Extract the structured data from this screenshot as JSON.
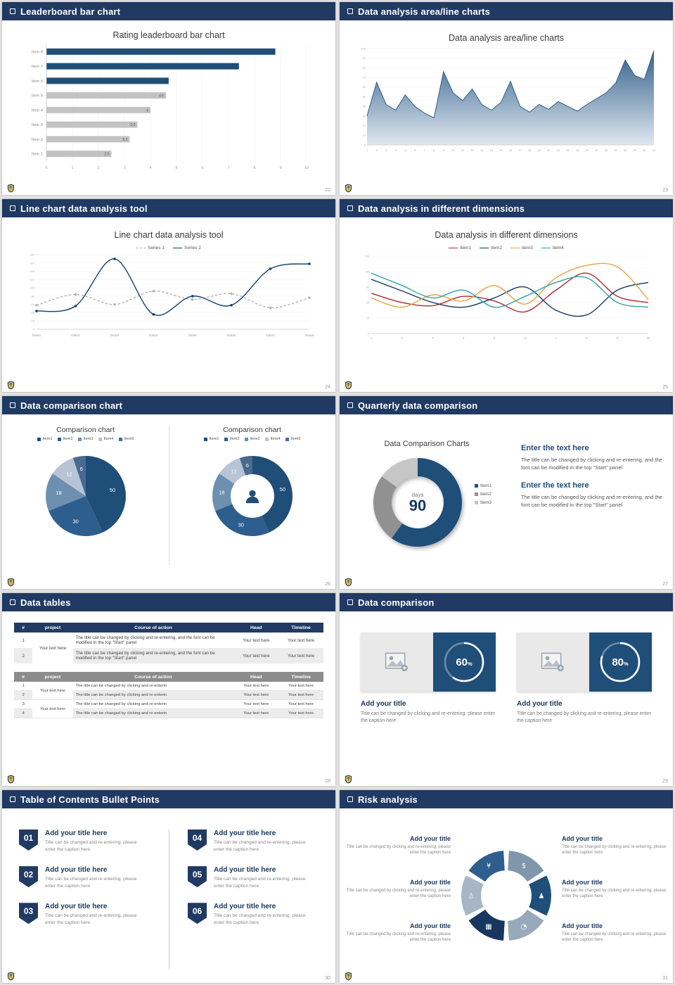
{
  "slides": {
    "leaderboard": {
      "header": "Leaderboard bar chart",
      "page": "22",
      "title": "Rating leaderboard bar chart",
      "chart": {
        "type": "bar",
        "xmax": 10,
        "x_ticks": [
          "0",
          "1",
          "2",
          "3",
          "4",
          "5",
          "6",
          "7",
          "8",
          "9",
          "10"
        ],
        "rows": [
          {
            "label": "Item 8",
            "value": 8.8,
            "color": "#1f4e79",
            "value_label": ""
          },
          {
            "label": "Item 7",
            "value": 7.4,
            "color": "#1f4e79",
            "value_label": ""
          },
          {
            "label": "Item 6",
            "value": 4.7,
            "color": "#1f4e79",
            "value_label": ""
          },
          {
            "label": "Item 5",
            "value": 4.6,
            "color": "#c3c3c3",
            "value_label": "4.6"
          },
          {
            "label": "Item 4",
            "value": 4,
            "color": "#c3c3c3",
            "value_label": "4"
          },
          {
            "label": "Item 3",
            "value": 3.5,
            "color": "#c3c3c3",
            "value_label": "3.5"
          },
          {
            "label": "Item 2",
            "value": 3.2,
            "color": "#c3c3c3",
            "value_label": "3.2"
          },
          {
            "label": "Item 1",
            "value": 2.5,
            "color": "#c3c3c3",
            "value_label": "2.5"
          }
        ]
      }
    },
    "area": {
      "header": "Data analysis area/line charts",
      "page": "23",
      "title": "Data analysis area/line charts",
      "chart": {
        "type": "area",
        "ymax": 100,
        "ystep": 10,
        "x_labels": [
          "1",
          "2",
          "3",
          "4",
          "5",
          "6",
          "7",
          "8",
          "9",
          "10",
          "11",
          "12",
          "13",
          "14",
          "15",
          "16",
          "17",
          "18",
          "19",
          "20",
          "21",
          "22",
          "23",
          "24",
          "25",
          "26",
          "27",
          "28",
          "29",
          "30",
          "31"
        ],
        "values": [
          30,
          65,
          42,
          36,
          52,
          40,
          33,
          28,
          76,
          54,
          46,
          58,
          42,
          36,
          44,
          66,
          40,
          34,
          42,
          37,
          45,
          40,
          35,
          42,
          48,
          54,
          64,
          88,
          72,
          68,
          98
        ],
        "line_color": "#2e5e8e",
        "fill_from": "#35618c",
        "fill_to": "#dfe7f0"
      }
    },
    "linechart": {
      "header": "Line chart data analysis tool",
      "page": "24",
      "title": "Line chart data analysis tool",
      "legend": [
        {
          "label": "Series 1",
          "color": "#b3b3b3",
          "dash": true
        },
        {
          "label": "Series 2",
          "color": "#17406b",
          "dash": false
        }
      ],
      "chart": {
        "type": "line",
        "ymax": 180,
        "ystep": 20,
        "x_labels": [
          "Data1",
          "Data2",
          "Data3",
          "Data4",
          "Data5",
          "Data6",
          "Data7",
          "Data8"
        ],
        "series": [
          {
            "name": "Series 1",
            "color": "#b3b3b3",
            "dash": true,
            "values": [
              58,
              84,
              60,
              92,
              72,
              86,
              52,
              76
            ]
          },
          {
            "name": "Series 2",
            "color": "#17406b",
            "dash": false,
            "values": [
              44,
              56,
              170,
              36,
              80,
              58,
              146,
              158
            ]
          }
        ]
      }
    },
    "dimensions": {
      "header": "Data analysis in different dimensions",
      "page": "25",
      "title": "Data analysis in different dimensions",
      "legend": [
        {
          "label": "item1",
          "color": "#b02a30"
        },
        {
          "label": "item2",
          "color": "#17375e"
        },
        {
          "label": "item3",
          "color": "#e8a33d"
        },
        {
          "label": "item4",
          "color": "#2fa3ad"
        }
      ],
      "chart": {
        "type": "line",
        "ymax": 100,
        "ystep": 20,
        "x_labels": [
          "1",
          "2",
          "3",
          "4",
          "5",
          "6",
          "7",
          "8",
          "9",
          "10"
        ],
        "series": [
          {
            "name": "item1",
            "color": "#b02a30",
            "values": [
              52,
              40,
              36,
              48,
              42,
              28,
              56,
              78,
              48,
              40
            ]
          },
          {
            "name": "item2",
            "color": "#17375e",
            "values": [
              70,
              55,
              40,
              34,
              46,
              60,
              30,
              24,
              56,
              66
            ]
          },
          {
            "name": "item3",
            "color": "#e8a33d",
            "values": [
              46,
              34,
              50,
              42,
              62,
              38,
              72,
              88,
              86,
              44
            ]
          },
          {
            "name": "item4",
            "color": "#2fa3ad",
            "values": [
              78,
              62,
              46,
              56,
              34,
              48,
              66,
              72,
              40,
              34
            ]
          }
        ]
      }
    },
    "comparison": {
      "header": "Data comparison chart",
      "page": "26",
      "left_title": "Comparison chart",
      "right_title": "Comparison chart",
      "legend": [
        {
          "label": "Item1",
          "color": "#1f4e79"
        },
        {
          "label": "Item2",
          "color": "#2e5e8e"
        },
        {
          "label": "Item3",
          "color": "#6d8fb0"
        },
        {
          "label": "Item4",
          "color": "#b7c4d6"
        },
        {
          "label": "Item5",
          "color": "#4a6a8f"
        }
      ],
      "chart": {
        "type": "pie",
        "values": [
          50,
          30,
          18,
          12,
          6
        ],
        "labels": [
          "50",
          "30",
          "18",
          "12",
          "6"
        ],
        "colors": [
          "#1f4e79",
          "#2e5e8e",
          "#6d8fb0",
          "#b7c4d6",
          "#4a6a8f"
        ]
      }
    },
    "quarterly": {
      "header": "Quarterly data comparison",
      "page": "27",
      "title": "Data Comparison Charts",
      "center_label": "days",
      "center_value": "90",
      "chart": {
        "type": "pie",
        "values": [
          60,
          25,
          15
        ],
        "labels": [
          "",
          "",
          ""
        ],
        "colors": [
          "#1f4e79",
          "#919191",
          "#c6c6c6"
        ]
      },
      "legend": [
        {
          "label": "Item1",
          "color": "#1f4e79"
        },
        {
          "label": "Item2",
          "color": "#919191"
        },
        {
          "label": "Item3",
          "color": "#c6c6c6"
        }
      ],
      "blocks": [
        {
          "heading": "Enter the text here",
          "body": "The title can be changed by clicking and re-entering, and the font can be modified in the top \"Start\" panel"
        },
        {
          "heading": "Enter the text here",
          "body": "The title can be changed by clicking and re-entering, and the font can be modified in the top \"Start\" panel"
        }
      ]
    },
    "tables": {
      "header": "Data tables",
      "page": "28",
      "columns": [
        "#",
        "project",
        "Course of action",
        "Head",
        "Timeline"
      ],
      "cell_project": "Your text here",
      "cell_value": "Your text here",
      "t1_course": "The title can be changed by clicking and re-entering, and the font can be modified in the top \"Start\" panel",
      "t2_course": "The title can be changed by clicking and re-enterin",
      "t1_nums": [
        "1",
        "2"
      ],
      "t2_nums": [
        "1",
        "2",
        "3",
        "4"
      ]
    },
    "datacomp": {
      "header": "Data comparison",
      "page": "29",
      "cards": [
        {
          "value": 60,
          "percent": "60",
          "suffix": "%",
          "title": "Add your title",
          "caption": "Title can be changed by clicking and re-entering, please enter the caption here"
        },
        {
          "value": 80,
          "percent": "80",
          "suffix": "%",
          "title": "Add your title",
          "caption": "Title can be changed by clicking and re-entering, please enter the caption here"
        }
      ]
    },
    "toc": {
      "header": "Table of Contents Bullet Points",
      "page": "30",
      "items": [
        {
          "num": "01",
          "title": "Add your title here",
          "caption": "Title can be changed and re-entering, please enter the caption here"
        },
        {
          "num": "02",
          "title": "Add your title here",
          "caption": "Title can be changed and re-entering, please enter the caption here"
        },
        {
          "num": "03",
          "title": "Add your title here",
          "caption": "Title can be changed and re-entering, please enter the caption here"
        },
        {
          "num": "04",
          "title": "Add your title here",
          "caption": "Title can be changed and re-entering, please enter the caption here"
        },
        {
          "num": "05",
          "title": "Add your title here",
          "caption": "Title can be changed and re-entering, please enter the caption here"
        },
        {
          "num": "06",
          "title": "Add your title here",
          "caption": "Title can be changed and re-entering, please enter the caption here"
        }
      ]
    },
    "risk": {
      "header": "Risk analysis",
      "page": "31",
      "blocks": [
        {
          "title": "Add your title",
          "caption": "Title can be changed by clicking and re-entering, please enter the caption here"
        },
        {
          "title": "Add your title",
          "caption": "Title can be changed by clicking and re-entering, please enter the caption here"
        },
        {
          "title": "Add your title",
          "caption": "Title can be changed by clicking and re-entering, please enter the caption here"
        },
        {
          "title": "Add your title",
          "caption": "Title can be changed by clicking and re-entering, please enter the caption here"
        },
        {
          "title": "Add your title",
          "caption": "Title can be changed by clicking and re-entering, please enter the caption here"
        },
        {
          "title": "Add your title",
          "caption": "Title can be changed by clicking and re-entering, please enter the caption here"
        }
      ],
      "ring": {
        "segments": [
          {
            "name": "coins-icon",
            "icon": "$",
            "color": "#8096ab"
          },
          {
            "name": "people-icon",
            "icon": "♟",
            "color": "#1f4e79"
          },
          {
            "name": "pie-chart-icon",
            "icon": "◔",
            "color": "#97a9ba"
          },
          {
            "name": "bank-icon",
            "icon": "▦",
            "color": "#17375e"
          },
          {
            "name": "person-icon",
            "icon": "♙",
            "color": "#a6b6c4"
          },
          {
            "name": "money-bag-icon",
            "icon": "¥",
            "color": "#2e5e8e"
          }
        ]
      }
    }
  }
}
